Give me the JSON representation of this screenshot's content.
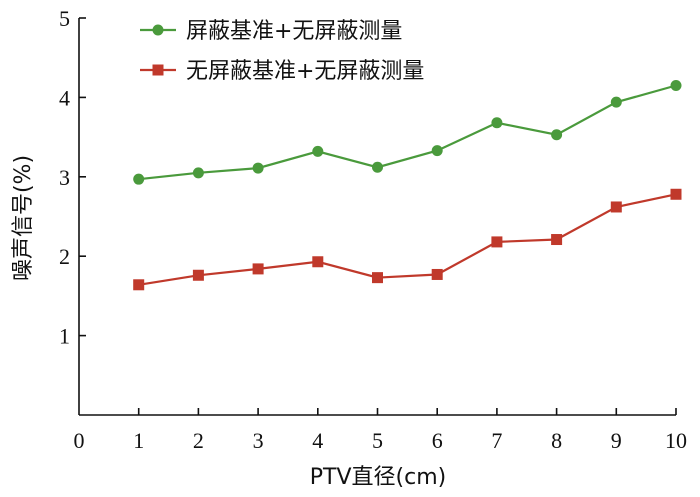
{
  "chart_data": {
    "type": "line",
    "xlabel": "PTV直径(cm)",
    "ylabel": "噪声信号(%)",
    "x": [
      1,
      2,
      3,
      4,
      5,
      6,
      7,
      8,
      9,
      10
    ],
    "xlim": [
      0,
      10
    ],
    "ylim": [
      0,
      5
    ],
    "x_ticks": [
      "0",
      "1",
      "2",
      "3",
      "4",
      "5",
      "6",
      "7",
      "8",
      "9",
      "10"
    ],
    "y_ticks": [
      "1",
      "2",
      "3",
      "4",
      "5"
    ],
    "grid": false,
    "legend_position": "top-left",
    "series": [
      {
        "name": "屏蔽基准+无屏蔽测量",
        "color": "#4a9a3c",
        "marker": "circle",
        "values": [
          2.97,
          3.05,
          3.11,
          3.32,
          3.12,
          3.33,
          3.68,
          3.53,
          3.94,
          4.15
        ]
      },
      {
        "name": "无屏蔽基准+无屏蔽测量",
        "color": "#c0392b",
        "marker": "square",
        "values": [
          1.64,
          1.76,
          1.84,
          1.93,
          1.73,
          1.77,
          2.18,
          2.21,
          2.62,
          2.78
        ]
      }
    ]
  }
}
